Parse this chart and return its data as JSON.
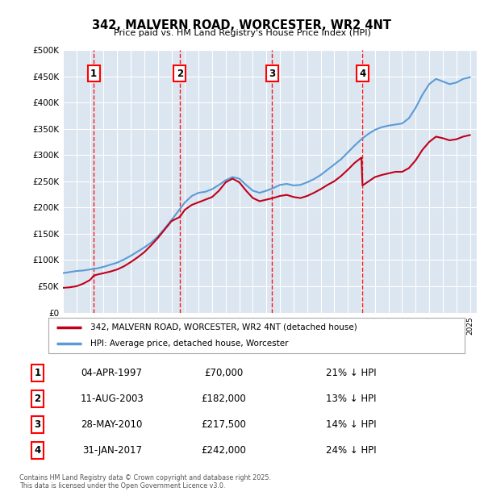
{
  "title": "342, MALVERN ROAD, WORCESTER, WR2 4NT",
  "subtitle": "Price paid vs. HM Land Registry's House Price Index (HPI)",
  "ylabel_ticks": [
    "£0",
    "£50K",
    "£100K",
    "£150K",
    "£200K",
    "£250K",
    "£300K",
    "£350K",
    "£400K",
    "£450K",
    "£500K"
  ],
  "ytick_values": [
    0,
    50000,
    100000,
    150000,
    200000,
    250000,
    300000,
    350000,
    400000,
    450000,
    500000
  ],
  "ylim": [
    0,
    500000
  ],
  "xlim_start": 1995.0,
  "xlim_end": 2025.5,
  "background_color": "#dce6f1",
  "legend_label_red": "342, MALVERN ROAD, WORCESTER, WR2 4NT (detached house)",
  "legend_label_blue": "HPI: Average price, detached house, Worcester",
  "footer": "Contains HM Land Registry data © Crown copyright and database right 2025.\nThis data is licensed under the Open Government Licence v3.0.",
  "sale_markers": [
    {
      "num": 1,
      "date": "04-APR-1997",
      "price": "£70,000",
      "pct": "21% ↓ HPI",
      "x": 1997.27
    },
    {
      "num": 2,
      "date": "11-AUG-2003",
      "price": "£182,000",
      "pct": "13% ↓ HPI",
      "x": 2003.61
    },
    {
      "num": 3,
      "date": "28-MAY-2010",
      "price": "£217,500",
      "pct": "14% ↓ HPI",
      "x": 2010.41
    },
    {
      "num": 4,
      "date": "31-JAN-2017",
      "price": "£242,000",
      "pct": "24% ↓ HPI",
      "x": 2017.08
    }
  ],
  "hpi_x": [
    1995,
    1995.5,
    1996,
    1996.5,
    1997,
    1997.5,
    1998,
    1998.5,
    1999,
    1999.5,
    2000,
    2000.5,
    2001,
    2001.5,
    2002,
    2002.5,
    2003,
    2003.5,
    2004,
    2004.5,
    2005,
    2005.5,
    2006,
    2006.5,
    2007,
    2007.5,
    2008,
    2008.5,
    2009,
    2009.5,
    2010,
    2010.5,
    2011,
    2011.5,
    2012,
    2012.5,
    2013,
    2013.5,
    2014,
    2014.5,
    2015,
    2015.5,
    2016,
    2016.5,
    2017,
    2017.5,
    2018,
    2018.5,
    2019,
    2019.5,
    2020,
    2020.5,
    2021,
    2021.5,
    2022,
    2022.5,
    2023,
    2023.5,
    2024,
    2024.5,
    2025
  ],
  "hpi_y": [
    75000,
    77000,
    79000,
    80000,
    82000,
    84000,
    87000,
    91000,
    95000,
    101000,
    108000,
    116000,
    124000,
    133000,
    145000,
    160000,
    176000,
    193000,
    210000,
    222000,
    228000,
    230000,
    235000,
    243000,
    252000,
    258000,
    255000,
    243000,
    232000,
    228000,
    232000,
    237000,
    243000,
    245000,
    242000,
    243000,
    248000,
    254000,
    262000,
    272000,
    282000,
    292000,
    305000,
    318000,
    330000,
    340000,
    348000,
    353000,
    356000,
    358000,
    360000,
    370000,
    390000,
    415000,
    435000,
    445000,
    440000,
    435000,
    438000,
    445000,
    448000
  ],
  "price_x": [
    1995,
    1995.5,
    1996,
    1996.5,
    1997,
    1997.27,
    1997.5,
    1998,
    1998.5,
    1999,
    1999.5,
    2000,
    2000.5,
    2001,
    2001.5,
    2002,
    2002.5,
    2003,
    2003.61,
    2004,
    2004.5,
    2005,
    2005.5,
    2006,
    2006.5,
    2007,
    2007.5,
    2008,
    2008.5,
    2009,
    2009.5,
    2010,
    2010.41,
    2011,
    2011.5,
    2012,
    2012.5,
    2013,
    2013.5,
    2014,
    2014.5,
    2015,
    2015.5,
    2016,
    2016.5,
    2017,
    2017.08,
    2018,
    2018.5,
    2019,
    2019.5,
    2020,
    2020.5,
    2021,
    2021.5,
    2022,
    2022.5,
    2023,
    2023.5,
    2024,
    2024.5,
    2025
  ],
  "price_y": [
    47000,
    48000,
    50000,
    55000,
    62000,
    70000,
    72000,
    75000,
    78000,
    82000,
    88000,
    96000,
    105000,
    115000,
    128000,
    142000,
    158000,
    174000,
    182000,
    196000,
    205000,
    210000,
    215000,
    220000,
    232000,
    248000,
    255000,
    248000,
    232000,
    218000,
    212000,
    215000,
    217500,
    222000,
    224000,
    220000,
    218000,
    222000,
    228000,
    235000,
    243000,
    250000,
    260000,
    272000,
    285000,
    295000,
    242000,
    258000,
    262000,
    265000,
    268000,
    268000,
    275000,
    290000,
    310000,
    325000,
    335000,
    332000,
    328000,
    330000,
    335000,
    338000
  ]
}
